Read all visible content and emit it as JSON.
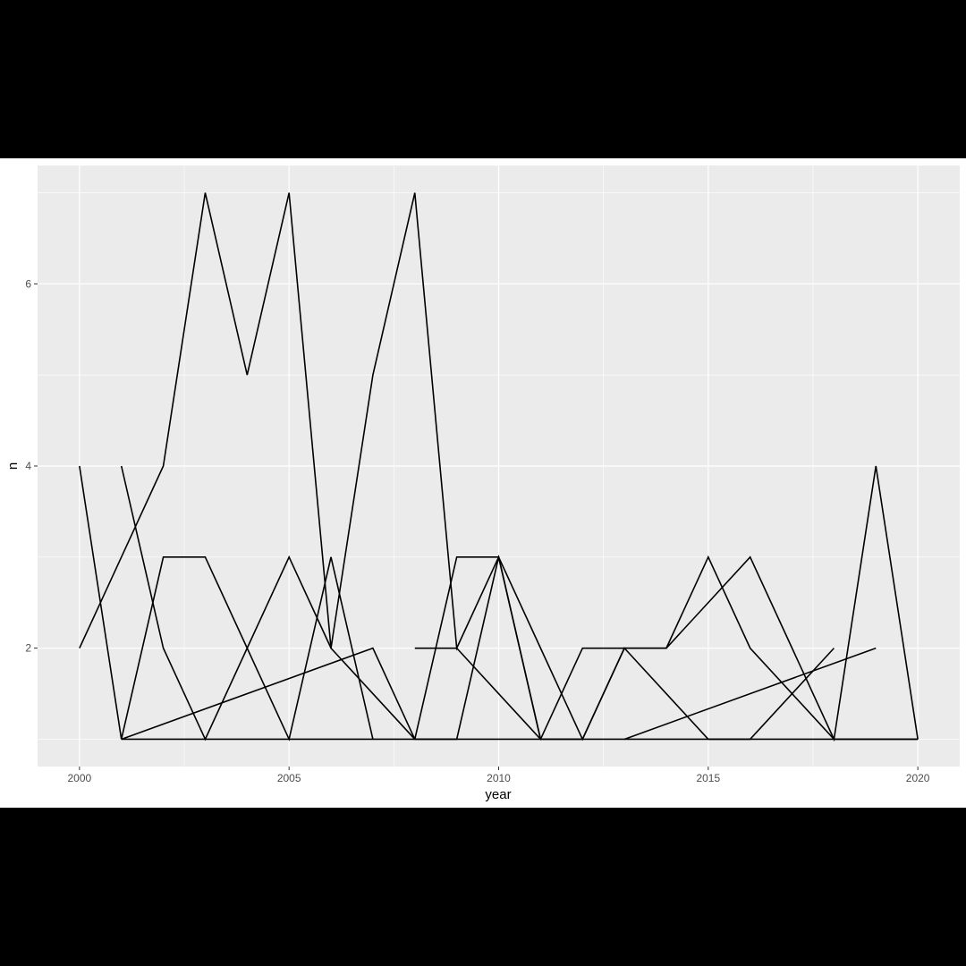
{
  "chart_data": {
    "type": "line",
    "title": "",
    "xlabel": "year",
    "ylabel": "n",
    "xlim": [
      1999.0,
      2021.0
    ],
    "ylim": [
      0.7,
      7.3
    ],
    "x_ticks": [
      2000,
      2005,
      2010,
      2015,
      2020
    ],
    "x_tick_labels": [
      "2000",
      "2005",
      "2010",
      "2015",
      "2020"
    ],
    "y_ticks": [
      2,
      4,
      6
    ],
    "y_tick_labels": [
      "2",
      "4",
      "6"
    ],
    "grid": true,
    "legend": "none",
    "colors": {
      "panel": "#ebebeb",
      "grid": "#ffffff",
      "line": "#000000",
      "tick_text": "#4d4d4d",
      "tick_mark": "#333333"
    },
    "series": [
      {
        "x": [
          2000,
          2001,
          2002,
          2003,
          2004,
          2005,
          2006,
          2007,
          2008,
          2009,
          2010,
          2011
        ],
        "y": [
          2,
          3,
          4,
          7,
          5,
          7,
          2,
          5,
          7,
          2,
          3,
          1
        ]
      },
      {
        "x": [
          2000,
          2001,
          2002,
          2003,
          2004,
          2005,
          2006,
          2007
        ],
        "y": [
          4,
          1,
          3,
          3,
          2,
          1,
          3,
          1
        ]
      },
      {
        "x": [
          2001,
          2002,
          2003,
          2004,
          2005,
          2006,
          2007,
          2008
        ],
        "y": [
          4,
          2,
          1,
          2,
          3,
          2,
          1.5,
          1
        ]
      },
      {
        "x": [
          2001,
          2007,
          2008,
          2009,
          2010,
          2011,
          2012,
          2013,
          2014,
          2015,
          2016,
          2017,
          2018,
          2019,
          2020
        ],
        "y": [
          1,
          2,
          1,
          1,
          3,
          2,
          1,
          2,
          2,
          3,
          2,
          1.5,
          1,
          1,
          1
        ]
      },
      {
        "x": [
          2008,
          2009,
          2010,
          2011,
          2012,
          2013,
          2014,
          2015,
          2016,
          2017,
          2018,
          2019,
          2020
        ],
        "y": [
          2,
          2,
          1.5,
          1,
          2,
          2,
          2,
          2.5,
          3,
          2,
          1,
          4,
          1
        ]
      },
      {
        "x": [
          2008,
          2009,
          2010,
          2011,
          2012,
          2013,
          2014,
          2015,
          2016,
          2017,
          2018
        ],
        "y": [
          1,
          3,
          3,
          1,
          1,
          2,
          1.5,
          1,
          1,
          1.5,
          2
        ]
      },
      {
        "x": [
          2001,
          2002,
          2003,
          2004,
          2005,
          2006,
          2007,
          2008,
          2009,
          2010,
          2011,
          2012,
          2013,
          2014,
          2015,
          2016,
          2017,
          2018,
          2019,
          2020
        ],
        "y": [
          1,
          1,
          1,
          1,
          1,
          1,
          1,
          1,
          1,
          1,
          1,
          1,
          1,
          1,
          1,
          1,
          1,
          1,
          1,
          1
        ]
      },
      {
        "x": [
          2013,
          2019
        ],
        "y": [
          1,
          2
        ]
      }
    ]
  }
}
